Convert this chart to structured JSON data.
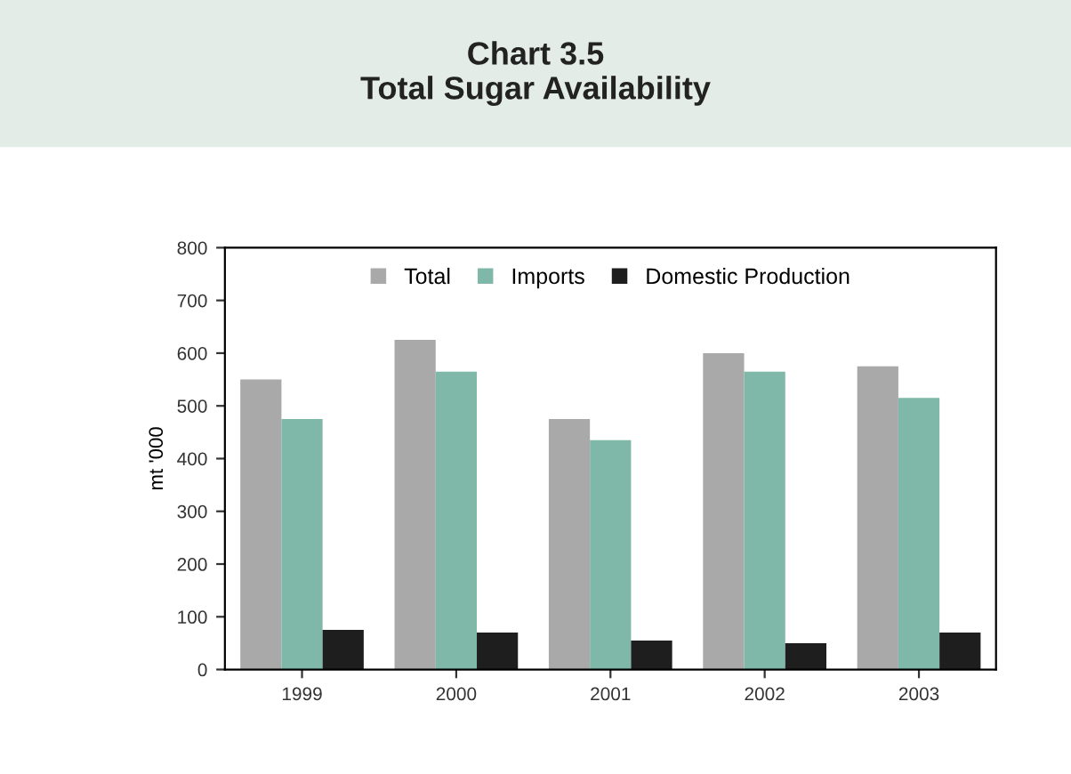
{
  "chart_data": {
    "type": "bar",
    "title": "Chart 3.5\nTotal Sugar Availability",
    "ylabel": "mt '000",
    "categories": [
      "1999",
      "2000",
      "2001",
      "2002",
      "2003"
    ],
    "series": [
      {
        "name": "Total",
        "color": "#a9a9a9",
        "values": [
          550,
          625,
          475,
          600,
          575
        ]
      },
      {
        "name": "Imports",
        "color": "#7fb8a8",
        "values": [
          475,
          565,
          435,
          565,
          515
        ]
      },
      {
        "name": "Domestic Production",
        "color": "#1e1e1e",
        "values": [
          75,
          70,
          55,
          50,
          70
        ]
      }
    ],
    "ylim": [
      0,
      800
    ],
    "yticks": [
      0,
      100,
      200,
      300,
      400,
      500,
      600,
      700,
      800
    ],
    "grid": false,
    "legend": "top"
  }
}
